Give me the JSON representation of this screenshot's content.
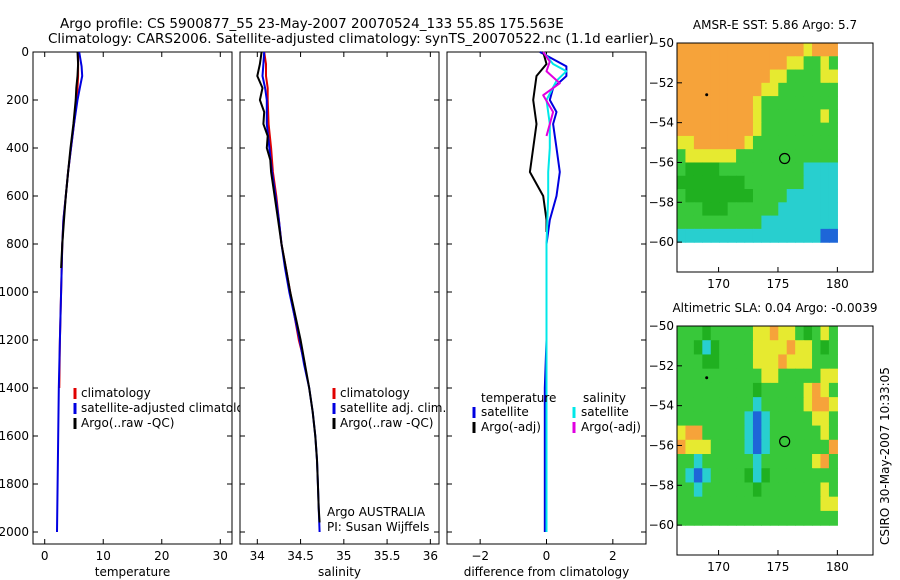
{
  "header": {
    "line1": "Argo profile: CS 5900877_55 23-May-2007 20070524_133 55.8S 175.563E",
    "line2": "Climatology: CARS2006. Satellite-adjusted climatology: synTS_20070522.nc (1.1d earlier)"
  },
  "side_label": "CSIRO 30-May-2007 10:33:05",
  "colors": {
    "red": "#e00000",
    "blue": "#0000e0",
    "black": "#000000",
    "cyan": "#00e8e8",
    "magenta": "#e000e0"
  },
  "chart_data": [
    {
      "type": "line",
      "name": "temperature",
      "xlabel": "temperature",
      "xlim": [
        -2,
        32
      ],
      "ylim": [
        2050,
        0
      ],
      "xticks": [
        0,
        10,
        20,
        30
      ],
      "yticks": [
        0,
        200,
        400,
        600,
        800,
        1000,
        1200,
        1400,
        1600,
        1800,
        2000
      ],
      "legend": [
        "climatology",
        "satellite-adjusted climatology",
        "Argo(..raw -QC)"
      ],
      "series": [
        {
          "name": "climatology",
          "color": "red",
          "points": [
            [
              5.7,
              0
            ],
            [
              5.7,
              100
            ],
            [
              5.5,
              200
            ],
            [
              5.0,
              300
            ],
            [
              4.5,
              400
            ],
            [
              4.0,
              500
            ],
            [
              3.6,
              600
            ],
            [
              3.2,
              700
            ],
            [
              3.0,
              800
            ],
            [
              2.8,
              1000
            ],
            [
              2.6,
              1200
            ],
            [
              2.5,
              1400
            ]
          ]
        },
        {
          "name": "satellite-adjusted climatology",
          "color": "blue",
          "points": [
            [
              5.9,
              0
            ],
            [
              6.3,
              60
            ],
            [
              6.4,
              100
            ],
            [
              6.0,
              150
            ],
            [
              5.6,
              200
            ],
            [
              5.0,
              300
            ],
            [
              4.5,
              400
            ],
            [
              4.0,
              500
            ],
            [
              3.6,
              600
            ],
            [
              3.2,
              700
            ],
            [
              3.0,
              800
            ],
            [
              2.8,
              1000
            ],
            [
              2.6,
              1200
            ],
            [
              2.4,
              1400
            ],
            [
              2.3,
              1600
            ],
            [
              2.2,
              1800
            ],
            [
              2.1,
              2000
            ]
          ]
        },
        {
          "name": "Argo(..raw -QC)",
          "color": "black",
          "points": [
            [
              5.6,
              0
            ],
            [
              5.7,
              50
            ],
            [
              5.6,
              100
            ],
            [
              5.4,
              150
            ],
            [
              5.3,
              200
            ],
            [
              4.9,
              300
            ],
            [
              4.4,
              400
            ],
            [
              4.0,
              500
            ],
            [
              3.6,
              600
            ],
            [
              3.3,
              700
            ],
            [
              3.0,
              800
            ],
            [
              2.8,
              900
            ]
          ]
        }
      ]
    },
    {
      "type": "line",
      "name": "salinity",
      "xlabel": "salinity",
      "xlim": [
        33.8,
        36.1
      ],
      "ylim": [
        2050,
        0
      ],
      "xticks": [
        34,
        34.5,
        35,
        35.5,
        36
      ],
      "yticks": [
        0,
        200,
        400,
        600,
        800,
        1000,
        1200,
        1400,
        1600,
        1800,
        2000
      ],
      "legend": [
        "climatology",
        "satellite adj. clim.",
        "Argo(..raw -QC)"
      ],
      "annotation": [
        "Argo AUSTRALIA",
        "PI: Susan Wijffels"
      ],
      "series": [
        {
          "name": "climatology",
          "color": "red",
          "points": [
            [
              34.08,
              0
            ],
            [
              34.1,
              50
            ],
            [
              34.1,
              100
            ],
            [
              34.12,
              150
            ],
            [
              34.12,
              200
            ],
            [
              34.13,
              300
            ],
            [
              34.16,
              400
            ],
            [
              34.18,
              500
            ],
            [
              34.22,
              600
            ],
            [
              34.25,
              700
            ],
            [
              34.28,
              800
            ],
            [
              34.33,
              900
            ],
            [
              34.38,
              1000
            ],
            [
              34.43,
              1100
            ],
            [
              34.48,
              1200
            ],
            [
              34.55,
              1300
            ]
          ]
        },
        {
          "name": "satellite adj. clim.",
          "color": "blue",
          "points": [
            [
              34.08,
              0
            ],
            [
              34.07,
              50
            ],
            [
              34.06,
              100
            ],
            [
              34.09,
              150
            ],
            [
              34.11,
              200
            ],
            [
              34.11,
              300
            ],
            [
              34.14,
              400
            ],
            [
              34.17,
              500
            ],
            [
              34.21,
              600
            ],
            [
              34.25,
              700
            ],
            [
              34.28,
              800
            ],
            [
              34.32,
              900
            ],
            [
              34.37,
              1000
            ],
            [
              34.43,
              1100
            ],
            [
              34.49,
              1200
            ],
            [
              34.54,
              1300
            ],
            [
              34.6,
              1400
            ],
            [
              34.64,
              1500
            ],
            [
              34.67,
              1600
            ],
            [
              34.69,
              1700
            ],
            [
              34.7,
              1800
            ],
            [
              34.71,
              1900
            ],
            [
              34.72,
              2000
            ]
          ]
        },
        {
          "name": "Argo(..raw -QC)",
          "color": "black",
          "points": [
            [
              34.05,
              0
            ],
            [
              34.03,
              50
            ],
            [
              34.0,
              100
            ],
            [
              34.06,
              150
            ],
            [
              34.03,
              200
            ],
            [
              34.08,
              250
            ],
            [
              34.07,
              300
            ],
            [
              34.12,
              350
            ],
            [
              34.11,
              400
            ],
            [
              34.15,
              450
            ],
            [
              34.16,
              500
            ],
            [
              34.2,
              600
            ],
            [
              34.24,
              700
            ],
            [
              34.28,
              800
            ],
            [
              34.33,
              900
            ],
            [
              34.38,
              1000
            ],
            [
              34.44,
              1100
            ],
            [
              34.5,
              1200
            ],
            [
              34.55,
              1300
            ],
            [
              34.6,
              1400
            ],
            [
              34.64,
              1500
            ],
            [
              34.67,
              1600
            ],
            [
              34.69,
              1700
            ],
            [
              34.7,
              1800
            ],
            [
              34.71,
              1900
            ],
            [
              34.72,
              1960
            ]
          ]
        }
      ]
    },
    {
      "type": "line",
      "name": "difference",
      "xlabel": "difference from climatology",
      "xlim": [
        -3,
        3
      ],
      "ylim": [
        2050,
        0
      ],
      "xticks": [
        -2,
        0,
        2
      ],
      "yticks": [
        0,
        200,
        400,
        600,
        800,
        1000,
        1200,
        1400,
        1600,
        1800,
        2000
      ],
      "legend_left_title": "temperature",
      "legend_right_title": "salinity",
      "legend_left": [
        "satellite",
        "Argo(-adj)"
      ],
      "legend_right": [
        "satellite",
        "Argo(-adj)"
      ],
      "series": [
        {
          "name": "temperature satellite",
          "color": "blue",
          "points": [
            [
              -0.2,
              0
            ],
            [
              0.6,
              60
            ],
            [
              0.6,
              100
            ],
            [
              0.2,
              150
            ],
            [
              0.1,
              200
            ],
            [
              0.3,
              250
            ],
            [
              0.2,
              300
            ],
            [
              0.3,
              400
            ],
            [
              0.4,
              500
            ],
            [
              0.3,
              600
            ],
            [
              0.1,
              700
            ],
            [
              0.0,
              800
            ],
            [
              0.0,
              1000
            ],
            [
              0.0,
              1200
            ],
            [
              -0.05,
              1400
            ],
            [
              -0.05,
              1600
            ],
            [
              -0.05,
              2000
            ]
          ]
        },
        {
          "name": "temperature Argo(-adj)",
          "color": "black",
          "points": [
            [
              -0.1,
              0
            ],
            [
              0.0,
              50
            ],
            [
              -0.3,
              100
            ],
            [
              -0.4,
              200
            ],
            [
              -0.3,
              300
            ],
            [
              -0.4,
              400
            ],
            [
              -0.5,
              500
            ],
            [
              -0.1,
              600
            ],
            [
              0.0,
              700
            ],
            [
              0.0,
              750
            ]
          ]
        },
        {
          "name": "salinity satellite",
          "color": "cyan",
          "points": [
            [
              -0.1,
              0
            ],
            [
              0.2,
              50
            ],
            [
              0.6,
              80
            ],
            [
              0.3,
              120
            ],
            [
              0.0,
              200
            ],
            [
              0.1,
              300
            ],
            [
              0.1,
              400
            ],
            [
              0.05,
              500
            ],
            [
              0.05,
              600
            ],
            [
              0.0,
              800
            ],
            [
              0.0,
              1000
            ],
            [
              0.0,
              1200
            ],
            [
              0.0,
              1400
            ],
            [
              0.0,
              1600
            ],
            [
              0.0,
              2000
            ]
          ]
        },
        {
          "name": "salinity Argo(-adj)",
          "color": "magenta",
          "points": [
            [
              -0.1,
              0
            ],
            [
              0.1,
              40
            ],
            [
              0.0,
              80
            ],
            [
              0.4,
              130
            ],
            [
              -0.1,
              180
            ],
            [
              0.2,
              250
            ],
            [
              0.1,
              300
            ],
            [
              0.0,
              350
            ]
          ]
        }
      ]
    },
    {
      "type": "heatmap",
      "name": "map_sst",
      "title": "AMSR-E SST: 5.86 Argo: 5.7",
      "xlim": [
        166.5,
        183
      ],
      "ylim": [
        -61.5,
        -50
      ],
      "xticks": [
        170,
        175,
        180
      ],
      "yticks": [
        -50,
        -52,
        -54,
        -56,
        -58,
        -60
      ],
      "float_position": [
        175.563,
        -55.8
      ],
      "previous_position": [
        169,
        -52.6
      ],
      "data_extent": {
        "lon": [
          166.5,
          180
        ],
        "lat": [
          -60,
          -50
        ]
      },
      "grid": [
        "oooooooooooooooyooo",
        "oooooooooooooyyggyg",
        "oooooooooooyyggggyy",
        "ooooooooooyyggggggg",
        "oooooooooyggggggggg",
        "oooooooooygggggggyg",
        "oooooooooyggggggggg",
        "yyooooooygggggggggg",
        "gyyyyyygggggggggggg",
        "gGGGGggggggggggcccc",
        "GGGGGGGGgggggggcccc",
        "gGGGGGGGGggggcccccc",
        "gggGGGggggggccccccc",
        "ggggggggggccccccccc",
        "cccccccccccccccccbb"
      ]
    },
    {
      "type": "heatmap",
      "name": "map_sla",
      "title": "Altimetric SLA: 0.04 Argo: -0.0039",
      "xlim": [
        166.5,
        183
      ],
      "ylim": [
        -61.5,
        -50
      ],
      "xticks": [
        170,
        175,
        180
      ],
      "yticks": [
        -50,
        -52,
        -54,
        -56,
        -58,
        -60
      ],
      "float_position": [
        175.563,
        -55.8
      ],
      "previous_position": [
        169,
        -52.6
      ],
      "data_extent": {
        "lon": [
          166.5,
          180
        ],
        "lat": [
          -60,
          -50
        ]
      },
      "grid": [
        "gggGgggggyyoyygGgyg",
        "ggGcGggggyyyyoyygGg",
        "gggGGggggyyyoyyyggg",
        "ggggggggggyygggggyy",
        "gggggggggGgggggyoyg",
        "gggggggggcgggggyooy",
        "ggggggggcbcgggggyyg",
        "yoogggggcbcggggggyg",
        "oyyyggggcbcgggggggo",
        "ggcggggggcggggggyog",
        "gcbcggggGcGgggggggg",
        "ggcggggggGgggggggyg",
        "gggggggggggggggggyy",
        "ggggggggggggggggggg"
      ]
    }
  ]
}
